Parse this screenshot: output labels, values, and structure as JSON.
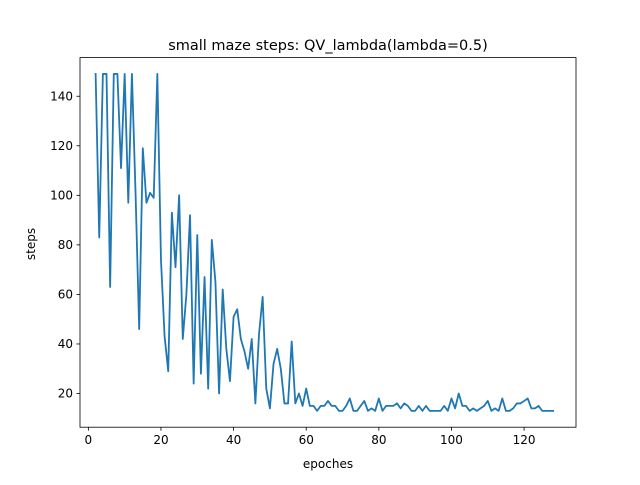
{
  "chart_data": {
    "type": "line",
    "title": "small maze steps: QV_lambda(lambda=0.5)",
    "xlabel": "epoches",
    "ylabel": "steps",
    "xlim": [
      -2.3,
      134.3
    ],
    "ylim": [
      6.4,
      155.6
    ],
    "xticks": [
      0,
      20,
      40,
      60,
      80,
      100,
      120
    ],
    "yticks": [
      20,
      40,
      60,
      80,
      100,
      120,
      140
    ],
    "grid": false,
    "line_color": "#1f77b4",
    "series": [
      {
        "x": [
          2,
          3,
          4,
          5,
          6,
          7,
          8,
          9,
          10,
          11,
          12,
          13,
          14,
          15,
          16,
          17,
          18,
          19,
          20,
          21,
          22,
          23,
          24,
          25,
          26,
          27,
          28,
          29,
          30,
          31,
          32,
          33,
          34,
          35,
          36,
          37,
          38,
          39,
          40,
          41,
          42,
          43,
          44,
          45,
          46,
          47,
          48,
          49,
          50,
          51,
          52,
          53,
          54,
          55,
          56,
          57,
          58,
          59,
          60,
          61,
          62,
          63,
          64,
          65,
          66,
          67,
          68,
          69,
          70,
          71,
          72,
          73,
          74,
          75,
          76,
          77,
          78,
          79,
          80,
          81,
          82,
          83,
          84,
          85,
          86,
          87,
          88,
          89,
          90,
          91,
          92,
          93,
          94,
          95,
          96,
          97,
          98,
          99,
          100,
          101,
          102,
          103,
          104,
          105,
          106,
          107,
          108,
          109,
          110,
          111,
          112,
          113,
          114,
          115,
          116,
          117,
          118,
          119,
          120,
          121,
          122,
          123,
          124,
          125,
          126,
          127,
          128
        ],
        "values": [
          149,
          83,
          149,
          149,
          63,
          149,
          149,
          111,
          149,
          97,
          149,
          101,
          46,
          119,
          97,
          101,
          99,
          149,
          74,
          43,
          29,
          93,
          71,
          100,
          42,
          60,
          92,
          24,
          84,
          28,
          67,
          22,
          82,
          65,
          20,
          62,
          38,
          25,
          51,
          54,
          42,
          37,
          30,
          42,
          16,
          44,
          59,
          22,
          14,
          32,
          38,
          30,
          16,
          16,
          41,
          16,
          20,
          15,
          22,
          15,
          15,
          13,
          15,
          15,
          17,
          15,
          15,
          13,
          13,
          15,
          18,
          13,
          13,
          15,
          17,
          13,
          14,
          13,
          18,
          13,
          15,
          15,
          15,
          16,
          14,
          16,
          15,
          13,
          13,
          15,
          13,
          15,
          13,
          13,
          13,
          13,
          15,
          13,
          18,
          14,
          20,
          15,
          15,
          13,
          14,
          13,
          14,
          15,
          17,
          13,
          14,
          13,
          18,
          13,
          13,
          14,
          16,
          16,
          17,
          18,
          14,
          14,
          15,
          13,
          13,
          13,
          13
        ]
      }
    ]
  }
}
